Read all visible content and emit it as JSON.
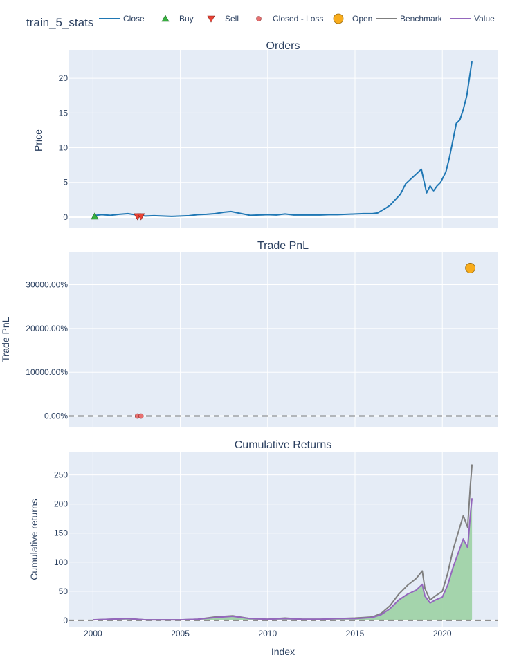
{
  "figure": {
    "title": "train_5_stats"
  },
  "colors": {
    "plot_bg": "#e5ecf6",
    "grid": "#ffffff",
    "close": "#1f77b4",
    "buy": "#37b13f",
    "sell": "#ea4335",
    "closed_loss": "#e87070",
    "open": "#f8ac1c",
    "benchmark": "#7f7f7f",
    "value": "#9467bd",
    "fill_positive": "#a0d3a8",
    "zero_line": "#7f7f7f"
  },
  "legend": [
    {
      "label": "Close",
      "symbol": "line",
      "color": "#1f77b4"
    },
    {
      "label": "Buy",
      "symbol": "triangle-up",
      "color": "#37b13f"
    },
    {
      "label": "Sell",
      "symbol": "triangle-down",
      "color": "#ea4335"
    },
    {
      "label": "Closed - Loss",
      "symbol": "circle-small",
      "color": "#e87070"
    },
    {
      "label": "Open",
      "symbol": "circle-large",
      "color": "#f8ac1c"
    },
    {
      "label": "Benchmark",
      "symbol": "line",
      "color": "#7f7f7f"
    },
    {
      "label": "Value",
      "symbol": "line",
      "color": "#9467bd"
    }
  ],
  "x_axis": {
    "title": "Index",
    "ticks": [
      "2000",
      "2005",
      "2010",
      "2015",
      "2020"
    ],
    "range": [
      1998.6,
      2023.2
    ]
  },
  "chart_data": [
    {
      "type": "line",
      "title": "Orders",
      "ylabel": "Price",
      "xlabel": "Index",
      "ylim": [
        -1.5,
        24
      ],
      "yticks": [
        0,
        5,
        10,
        15,
        20
      ],
      "grid": true,
      "series": [
        {
          "name": "Close",
          "x": [
            2000.0,
            2000.5,
            2001.0,
            2001.5,
            2002.0,
            2002.5,
            2003.0,
            2003.5,
            2004.0,
            2004.5,
            2005.0,
            2005.5,
            2006.0,
            2006.5,
            2007.0,
            2007.5,
            2007.9,
            2008.5,
            2009.0,
            2009.5,
            2010.0,
            2010.5,
            2011.0,
            2011.5,
            2012.0,
            2012.5,
            2013.0,
            2013.5,
            2014.0,
            2014.5,
            2015.0,
            2015.5,
            2016.0,
            2016.3,
            2016.7,
            2017.0,
            2017.3,
            2017.6,
            2017.9,
            2018.2,
            2018.5,
            2018.8,
            2018.95,
            2019.1,
            2019.3,
            2019.5,
            2019.7,
            2019.9,
            2020.0,
            2020.2,
            2020.4,
            2020.6,
            2020.8,
            2021.0,
            2021.2,
            2021.4,
            2021.55,
            2021.7
          ],
          "y": [
            0.2,
            0.35,
            0.25,
            0.4,
            0.5,
            0.3,
            0.15,
            0.2,
            0.15,
            0.1,
            0.15,
            0.2,
            0.35,
            0.4,
            0.5,
            0.7,
            0.8,
            0.5,
            0.25,
            0.3,
            0.35,
            0.3,
            0.45,
            0.3,
            0.3,
            0.3,
            0.3,
            0.35,
            0.35,
            0.4,
            0.45,
            0.5,
            0.5,
            0.6,
            1.2,
            1.7,
            2.5,
            3.3,
            4.8,
            5.5,
            6.2,
            6.9,
            5.2,
            3.5,
            4.5,
            3.8,
            4.5,
            5.0,
            5.5,
            6.5,
            8.5,
            11.0,
            13.5,
            14.0,
            15.5,
            17.5,
            20.0,
            22.5
          ]
        }
      ],
      "markers": [
        {
          "name": "Buy",
          "x": [
            2000.1
          ],
          "y": [
            0.1
          ]
        },
        {
          "name": "Sell",
          "x": [
            2002.55,
            2002.75
          ],
          "y": [
            0.1,
            0.1
          ]
        }
      ]
    },
    {
      "type": "scatter",
      "title": "Trade PnL",
      "ylabel": "Trade PnL",
      "xlabel": "Index",
      "ylim": [
        -2600,
        37500
      ],
      "yticks": [
        0,
        10000,
        20000,
        30000
      ],
      "ytick_labels": [
        "0.00%",
        "10000.00%",
        "20000.00%",
        "30000.00%"
      ],
      "zero_line": true,
      "grid": true,
      "series": [
        {
          "name": "Closed - Loss",
          "x": [
            2002.55,
            2002.75
          ],
          "y": [
            0,
            0
          ]
        },
        {
          "name": "Open",
          "x": [
            2021.6
          ],
          "y": [
            33800
          ]
        }
      ]
    },
    {
      "type": "area",
      "title": "Cumulative Returns",
      "ylabel": "Cumulative returns",
      "xlabel": "Index",
      "ylim": [
        -12,
        290
      ],
      "yticks": [
        0,
        50,
        100,
        150,
        200,
        250
      ],
      "zero_line": true,
      "grid": true,
      "series": [
        {
          "name": "Benchmark",
          "x": [
            2000.0,
            2001.0,
            2002.0,
            2003.0,
            2004.0,
            2005.0,
            2006.0,
            2007.0,
            2008.0,
            2009.0,
            2010.0,
            2011.0,
            2012.0,
            2013.0,
            2014.0,
            2015.0,
            2015.5,
            2016.0,
            2016.5,
            2017.0,
            2017.5,
            2018.0,
            2018.5,
            2018.85,
            2019.0,
            2019.3,
            2019.6,
            2020.0,
            2020.3,
            2020.6,
            2020.9,
            2021.2,
            2021.45,
            2021.6,
            2021.7
          ],
          "y": [
            1,
            2,
            3,
            1,
            1,
            1,
            2,
            6,
            8,
            3,
            2,
            4,
            2,
            2,
            3,
            4,
            5,
            6,
            12,
            25,
            45,
            60,
            72,
            85,
            55,
            35,
            42,
            50,
            80,
            120,
            150,
            180,
            160,
            230,
            268
          ]
        },
        {
          "name": "Value",
          "x": [
            2000.0,
            2001.0,
            2002.0,
            2003.0,
            2004.0,
            2005.0,
            2006.0,
            2007.0,
            2008.0,
            2009.0,
            2010.0,
            2011.0,
            2012.0,
            2013.0,
            2014.0,
            2015.0,
            2015.5,
            2016.0,
            2016.5,
            2017.0,
            2017.5,
            2018.0,
            2018.5,
            2018.85,
            2019.0,
            2019.3,
            2019.6,
            2020.0,
            2020.3,
            2020.6,
            2020.9,
            2021.2,
            2021.45,
            2021.6,
            2021.7
          ],
          "y": [
            1,
            2,
            3,
            1,
            1,
            1,
            2,
            5,
            7,
            3,
            2,
            3,
            2,
            2,
            3,
            3,
            4,
            5,
            10,
            20,
            35,
            45,
            52,
            62,
            42,
            30,
            35,
            40,
            60,
            90,
            115,
            140,
            125,
            180,
            210
          ]
        }
      ]
    }
  ]
}
